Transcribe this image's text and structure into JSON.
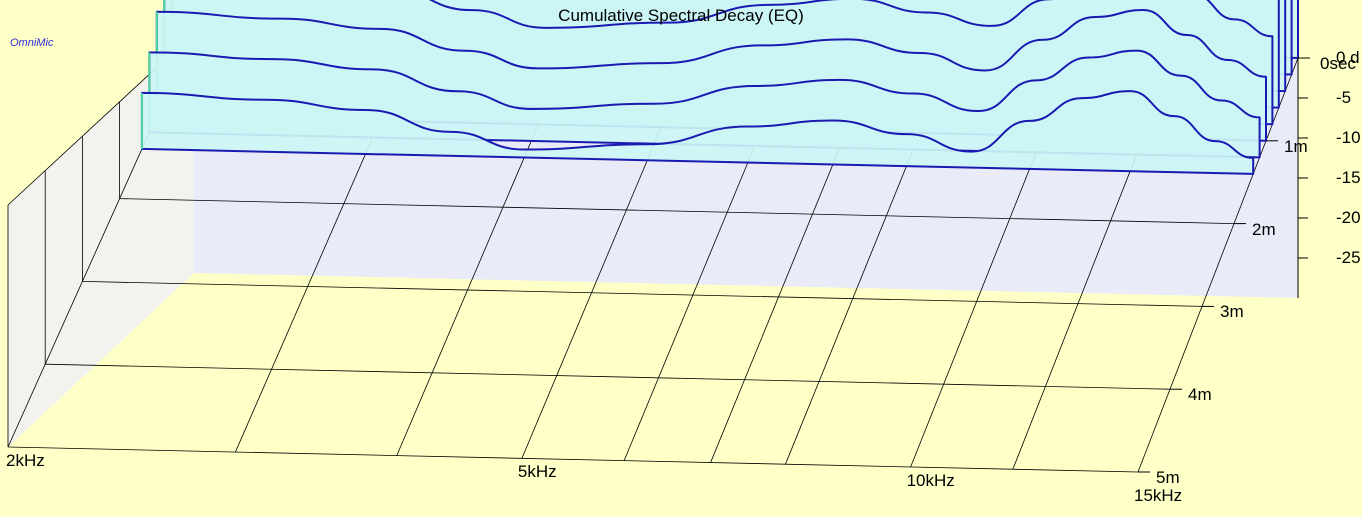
{
  "brand": "OmniMic",
  "colors": {
    "background": "#ffffc8",
    "slice_fill": "#ccf5f5",
    "slice_stroke": "#1a1ab3",
    "grid": "#000000",
    "back_wall": "#e9ecf8"
  },
  "chart_data": {
    "type": "area",
    "title": "Cumulative Spectral Decay (EQ)",
    "freq_axis": {
      "scale": "log",
      "range": [
        "2kHz",
        "15kHz"
      ],
      "tick_labels": [
        "2kHz",
        "5kHz",
        "10kHz",
        "15kHz"
      ]
    },
    "time_axis": {
      "range_ms": [
        0,
        5
      ],
      "tick_labels": [
        "0sec",
        "1m",
        "2m",
        "3m",
        "4m",
        "5m"
      ]
    },
    "level_axis": {
      "unit": "dB",
      "range": [
        -30,
        0
      ],
      "tick_labels": [
        "0 d",
        "-5",
        "-10",
        "-15",
        "-20",
        "-25"
      ]
    },
    "grid": true,
    "freq_khz": [
      2,
      2.5,
      3,
      3.5,
      4,
      5,
      6,
      7,
      8,
      9,
      10,
      11,
      12,
      13,
      14,
      15
    ],
    "time_ms": [
      0,
      0.2,
      0.4,
      0.6,
      0.8,
      1.0,
      1.2,
      1.4
    ],
    "series": [
      {
        "values": [
          0,
          0,
          -0.5,
          -0.8,
          -1.0,
          -1.3,
          -1.5,
          -1.5,
          -1.2,
          -0.8,
          -0.5,
          -0.2,
          0,
          -0.3,
          -1.5,
          -2.5
        ]
      },
      {
        "values": [
          -4,
          -5,
          -6,
          -7,
          -8,
          -7.5,
          -6,
          -5.5,
          -6,
          -6.5,
          -5,
          -3,
          -2.5,
          -4.5,
          -6,
          -7
        ]
      },
      {
        "values": [
          -8,
          -9,
          -9.5,
          -11,
          -12,
          -11,
          -10,
          -10.5,
          -11,
          -12,
          -9,
          -6,
          -5.5,
          -8,
          -10,
          -11
        ]
      },
      {
        "values": [
          -11,
          -11.5,
          -12.5,
          -14.5,
          -16,
          -15,
          -13.5,
          -13,
          -14,
          -15,
          -12,
          -9,
          -8.5,
          -11,
          -13.5,
          -15
        ]
      },
      {
        "values": [
          -14,
          -14.5,
          -15.5,
          -18,
          -20,
          -19,
          -16.5,
          -15.5,
          -17,
          -18.5,
          -15,
          -12,
          -11,
          -14,
          -17,
          -19
        ]
      },
      {
        "values": [
          -17,
          -17.5,
          -18.5,
          -21,
          -23,
          -22,
          -19.5,
          -18.5,
          -20,
          -22,
          -18,
          -15,
          -14,
          -17,
          -20,
          -22
        ]
      },
      {
        "values": [
          -20,
          -20.5,
          -21.5,
          -24,
          -26,
          -25,
          -22.5,
          -21.5,
          -23,
          -25,
          -21,
          -18,
          -17,
          -20,
          -23,
          -25
        ]
      },
      {
        "values": [
          -23,
          -23.5,
          -24.5,
          -27,
          -29,
          -28,
          -25.5,
          -24.5,
          -26,
          -28,
          -24,
          -21,
          -20,
          -23,
          -26,
          -28
        ]
      }
    ]
  }
}
